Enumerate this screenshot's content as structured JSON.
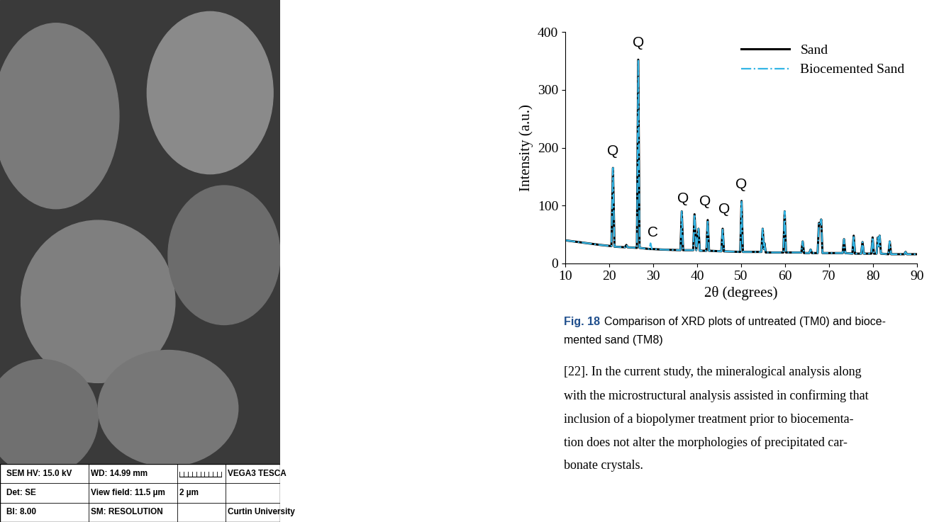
{
  "sem_image": {
    "info_bar": [
      [
        "SEM HV: 15.0 kV",
        "WD: 14.99 mm",
        "",
        "VEGA3 TESCA"
      ],
      [
        "Det: SE",
        "View field: 11.5 µm",
        "2 µm",
        ""
      ],
      [
        "BI: 8.00",
        "SM: RESOLUTION",
        "",
        "Curtin University"
      ]
    ]
  },
  "chart_data": {
    "type": "line",
    "xlabel": "2θ (degrees)",
    "ylabel": "Intensity (a.u.)",
    "x": [
      10,
      12,
      14,
      16,
      18,
      20.5,
      20.85,
      21.2,
      23.6,
      23.9,
      24.2,
      26.3,
      26.6,
      26.9,
      29.1,
      29.4,
      29.7,
      32,
      36.2,
      36.5,
      36.8,
      39.1,
      39.4,
      39.8,
      40.3,
      40.6,
      42.1,
      42.4,
      42.7,
      45.5,
      45.8,
      46.1,
      49.8,
      50.1,
      50.4,
      54.6,
      54.9,
      55.2,
      55.3,
      55.6,
      59.6,
      59.9,
      60.2,
      63.7,
      64.0,
      64.3,
      65.5,
      65.8,
      66.1,
      67.4,
      67.7,
      68.0,
      68.2,
      68.5,
      73.1,
      73.4,
      73.7,
      75.3,
      75.6,
      75.9,
      77.3,
      77.6,
      77.9,
      79.6,
      79.9,
      80.2,
      80.8,
      81.1,
      81.3,
      81.5,
      81.8,
      83.5,
      83.8,
      84.1,
      87.1,
      87.4,
      87.7,
      90
    ],
    "series": [
      {
        "name": "Sand",
        "color": "#000000",
        "line_style": "solid",
        "values": [
          40,
          38,
          36,
          34,
          32,
          30,
          165,
          29,
          28,
          32,
          28,
          27,
          352,
          27,
          25,
          25,
          25,
          24,
          23,
          90,
          23,
          23,
          85,
          23,
          60,
          22,
          22,
          75,
          22,
          21,
          60,
          21,
          20,
          108,
          20,
          20,
          60,
          25,
          35,
          19,
          19,
          90,
          19,
          19,
          38,
          18,
          18,
          24,
          18,
          18,
          70,
          68,
          76,
          18,
          18,
          42,
          18,
          17,
          48,
          17,
          17,
          37,
          17,
          17,
          45,
          17,
          17,
          45,
          30,
          48,
          17,
          16,
          38,
          16,
          16,
          20,
          16,
          16
        ]
      },
      {
        "name": "Biocemented Sand",
        "color": "#33b5e5",
        "line_style": "dashdot",
        "values": [
          40,
          38,
          36,
          34,
          32,
          30,
          165,
          29,
          28,
          32,
          28,
          27,
          352,
          27,
          25,
          35,
          25,
          24,
          23,
          90,
          23,
          23,
          85,
          23,
          60,
          22,
          22,
          75,
          22,
          21,
          60,
          21,
          20,
          108,
          20,
          20,
          60,
          25,
          35,
          19,
          19,
          90,
          19,
          19,
          38,
          18,
          18,
          24,
          18,
          18,
          70,
          68,
          76,
          18,
          18,
          42,
          18,
          17,
          48,
          17,
          17,
          37,
          17,
          17,
          45,
          17,
          17,
          45,
          30,
          48,
          17,
          16,
          38,
          16,
          16,
          20,
          16,
          16
        ]
      }
    ],
    "xlim": [
      10,
      90
    ],
    "xticks": [
      10,
      20,
      30,
      40,
      50,
      60,
      70,
      80,
      90
    ],
    "ylim": [
      0,
      400
    ],
    "yticks": [
      0,
      100,
      200,
      300,
      400
    ],
    "legend": "upper right",
    "annotations": [
      {
        "text": "Q",
        "x": 20.85,
        "y": 182
      },
      {
        "text": "Q",
        "x": 26.6,
        "y": 370
      },
      {
        "text": "C",
        "x": 30.0,
        "y": 42
      },
      {
        "text": "Q",
        "x": 36.8,
        "y": 100
      },
      {
        "text": "Q",
        "x": 41.8,
        "y": 96
      },
      {
        "text": "Q",
        "x": 46.2,
        "y": 82
      },
      {
        "text": "Q",
        "x": 50.1,
        "y": 125
      }
    ]
  },
  "caption": {
    "label": "Fig. 18",
    "lines": [
      "Comparison of XRD plots of untreated (TM0) and bioce-",
      "mented sand (TM8)"
    ]
  },
  "body": [
    "[22]. In the current study, the mineralogical analysis along",
    "with the microstructural analysis assisted in confirming that",
    "inclusion of a biopolymer treatment prior to biocementa-",
    "tion does not alter the morphologies of precipitated car-",
    "bonate crystals."
  ]
}
